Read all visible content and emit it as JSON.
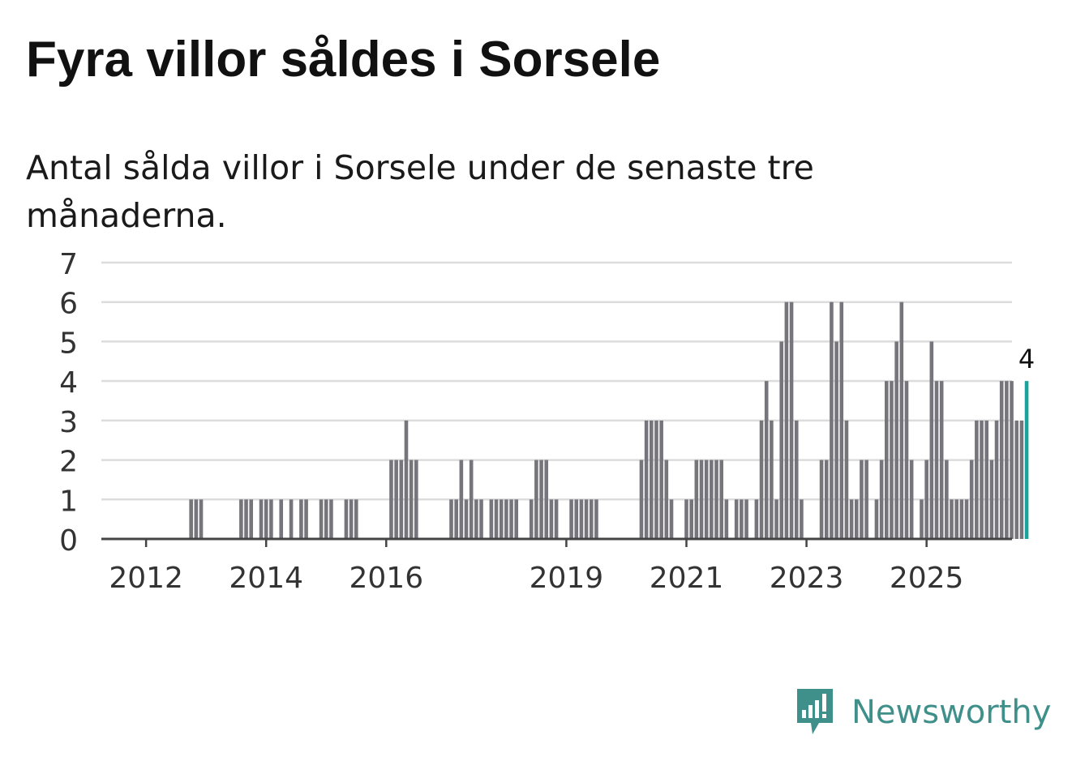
{
  "header": {
    "title": "Fyra villor såldes i Sorsele",
    "subtitle": "Antal sålda villor i Sorsele under de senaste tre månaderna."
  },
  "brand": {
    "name": "Newsworthy",
    "icon": "newsworthy-logo-icon"
  },
  "colors": {
    "bar": "#76757b",
    "highlight": "#1aa39a",
    "grid": "#dcdcdc",
    "axis": "#444444",
    "brand": "#3f8f8b"
  },
  "chart_data": {
    "type": "bar",
    "title": "Fyra villor såldes i Sorsele",
    "subtitle": "Antal sålda villor i Sorsele under de senaste tre månaderna.",
    "xlabel": "",
    "ylabel": "",
    "ylim": [
      0,
      7
    ],
    "yticks": [
      "0",
      "1",
      "2",
      "3",
      "4",
      "5",
      "6",
      "7"
    ],
    "grid": true,
    "start_period": "2011-01",
    "frequency": "monthly, rolling three months",
    "x_ticks": [
      {
        "label": "2012",
        "index": 12
      },
      {
        "label": "2014",
        "index": 36
      },
      {
        "label": "2016",
        "index": 60
      },
      {
        "label": "2019",
        "index": 96
      },
      {
        "label": "2021",
        "index": 120
      },
      {
        "label": "2023",
        "index": 144
      },
      {
        "label": "2025",
        "index": 168
      }
    ],
    "values": [
      0,
      0,
      0,
      0,
      0,
      0,
      0,
      0,
      0,
      0,
      0,
      0,
      0,
      0,
      0,
      0,
      0,
      0,
      0,
      0,
      0,
      1,
      1,
      1,
      0,
      0,
      0,
      0,
      0,
      0,
      0,
      1,
      1,
      1,
      0,
      1,
      1,
      1,
      0,
      1,
      0,
      1,
      0,
      1,
      1,
      0,
      0,
      1,
      1,
      1,
      0,
      0,
      1,
      1,
      1,
      0,
      0,
      0,
      0,
      0,
      0,
      2,
      2,
      2,
      3,
      2,
      2,
      0,
      0,
      0,
      0,
      0,
      0,
      1,
      1,
      2,
      1,
      2,
      1,
      1,
      0,
      1,
      1,
      1,
      1,
      1,
      1,
      0,
      0,
      1,
      2,
      2,
      2,
      1,
      1,
      0,
      0,
      1,
      1,
      1,
      1,
      1,
      1,
      0,
      0,
      0,
      0,
      0,
      0,
      0,
      0,
      2,
      3,
      3,
      3,
      3,
      2,
      1,
      0,
      0,
      1,
      1,
      2,
      2,
      2,
      2,
      2,
      2,
      1,
      0,
      1,
      1,
      1,
      0,
      1,
      3,
      4,
      3,
      1,
      5,
      6,
      6,
      3,
      1,
      0,
      0,
      0,
      2,
      2,
      6,
      5,
      6,
      3,
      1,
      1,
      2,
      2,
      0,
      1,
      2,
      4,
      4,
      5,
      6,
      4,
      2,
      0,
      1,
      2,
      5,
      4,
      4,
      2,
      1,
      1,
      1,
      1,
      2,
      3,
      3,
      3,
      2,
      3,
      4,
      4,
      4,
      3,
      3,
      4
    ],
    "highlight_last": true,
    "last_value_label": "4"
  }
}
